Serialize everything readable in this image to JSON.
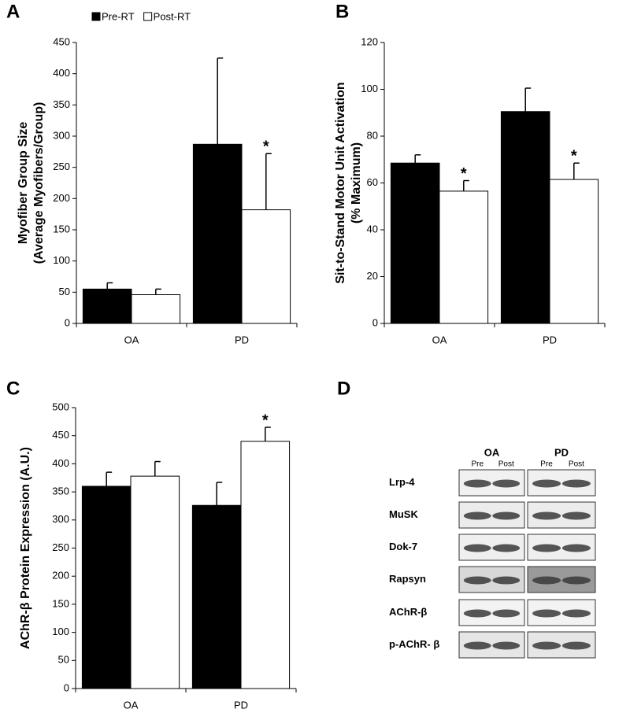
{
  "chart_data": [
    {
      "type": "bar",
      "panel": "A",
      "ylabel": [
        "Myofiber Group Size",
        "(Average Myofibers/Group)"
      ],
      "categories": [
        "OA",
        "PD"
      ],
      "series": [
        {
          "name": "Pre-RT",
          "color": "#000000",
          "values": [
            55,
            287
          ],
          "errors": [
            10,
            138
          ],
          "markers": [
            null,
            null
          ]
        },
        {
          "name": "Post-RT",
          "color": "#ffffff",
          "values": [
            46,
            182
          ],
          "errors": [
            9,
            90
          ],
          "markers": [
            null,
            "*"
          ]
        }
      ],
      "ylim": [
        0,
        450
      ],
      "yticks": [
        0,
        50,
        100,
        150,
        200,
        250,
        300,
        350,
        400,
        450
      ],
      "legend": "top"
    },
    {
      "type": "bar",
      "panel": "B",
      "ylabel": [
        "Sit-to-Stand Motor Unit Activation",
        "(% Maximum)"
      ],
      "categories": [
        "OA",
        "PD"
      ],
      "series": [
        {
          "color": "#000000",
          "values": [
            68.5,
            90.5
          ],
          "errors": [
            3.5,
            10
          ],
          "markers": [
            null,
            null
          ]
        },
        {
          "color": "#ffffff",
          "values": [
            56.5,
            61.5
          ],
          "errors": [
            4.5,
            7
          ],
          "markers": [
            "*",
            "*"
          ]
        }
      ],
      "ylim": [
        0,
        120
      ],
      "yticks": [
        0,
        20,
        40,
        60,
        80,
        100,
        120
      ]
    },
    {
      "type": "bar",
      "panel": "C",
      "ylabel": [
        "AChR-β Protein Expression (A.U.)"
      ],
      "categories": [
        "OA",
        "PD"
      ],
      "series": [
        {
          "color": "#000000",
          "values": [
            360,
            326
          ],
          "errors": [
            25,
            41
          ],
          "markers": [
            null,
            null
          ]
        },
        {
          "color": "#ffffff",
          "values": [
            378,
            440
          ],
          "errors": [
            26,
            25
          ],
          "markers": [
            null,
            "*"
          ]
        }
      ],
      "ylim": [
        0,
        500
      ],
      "yticks": [
        0,
        50,
        100,
        150,
        200,
        250,
        300,
        350,
        400,
        450,
        500
      ]
    },
    {
      "type": "blot",
      "panel": "D",
      "groups": [
        "OA",
        "PD"
      ],
      "lanes": [
        "Pre",
        "Post",
        "Pre",
        "Post"
      ],
      "rows": [
        "Lrp-4",
        "MuSK",
        "Dok-7",
        "Rapsyn",
        "AChR-β",
        "p-AChR- β"
      ]
    }
  ]
}
